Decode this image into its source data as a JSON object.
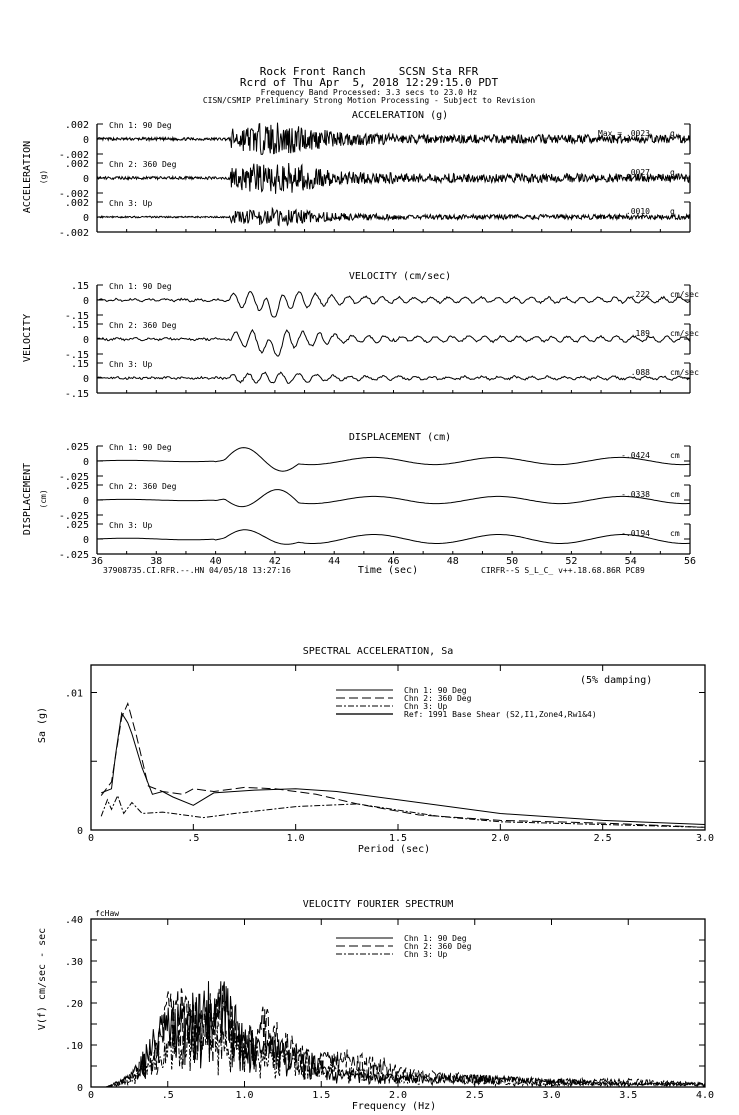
{
  "header": {
    "line1": "Rock Front Ranch     SCSN Sta RFR",
    "line2": "Rcrd of Thu Apr  5, 2018 12:29:15.0 PDT",
    "line3": "Frequency Band Processed: 3.3 secs to 23.0 Hz",
    "line4": "CISN/CSMIP Preliminary Strong Motion Processing - Subject to Revision"
  },
  "chart_data": [
    {
      "type": "line",
      "title": "ACCELERATION (g)",
      "ylabel": "ACCELERATION",
      "yunit": "(g)",
      "ylim": [
        -0.002,
        0.002
      ],
      "yticks": [
        ".002",
        "0",
        "-.002"
      ],
      "xlim": [
        36,
        56
      ],
      "max_label": "Max =",
      "series": [
        {
          "name": "Chn 1: 90 Deg",
          "peak": ".0023",
          "unit": "g"
        },
        {
          "name": "Chn 2: 360 Deg",
          "peak": ".0027",
          "unit": "g"
        },
        {
          "name": "Chn 3: Up",
          "peak": ".0010",
          "unit": "g"
        }
      ]
    },
    {
      "type": "line",
      "title": "VELOCITY (cm/sec)",
      "ylabel": "VELOCITY",
      "ylim": [
        -0.15,
        0.15
      ],
      "yticks": [
        ".15",
        "0",
        "-.15"
      ],
      "xlim": [
        36,
        56
      ],
      "series": [
        {
          "name": "Chn 1: 90 Deg",
          "peak": ".222",
          "unit": "cm/sec"
        },
        {
          "name": "Chn 2: 360 Deg",
          "peak": ".189",
          "unit": "cm/sec"
        },
        {
          "name": "Chn 3: Up",
          "peak": ".088",
          "unit": "cm/sec"
        }
      ]
    },
    {
      "type": "line",
      "title": "DISPLACEMENT (cm)",
      "ylabel": "DISPLACEMENT",
      "yunit": "(cm)",
      "ylim": [
        -0.025,
        0.025
      ],
      "yticks": [
        ".025",
        "0",
        "-.025"
      ],
      "xlim": [
        36,
        56
      ],
      "xlabel": "Time (sec)",
      "xticks": [
        "36",
        "38",
        "40",
        "42",
        "44",
        "46",
        "48",
        "50",
        "52",
        "54",
        "56"
      ],
      "footer_left": "37908735.CI.RFR.--.HN 04/05/18 13:27:16",
      "footer_right": "CIRFR--S  S_L_C_  v++.18.68.86R PC89",
      "series": [
        {
          "name": "Chn 1: 90 Deg",
          "peak": "-.0424",
          "unit": "cm"
        },
        {
          "name": "Chn 2: 360 Deg",
          "peak": "-.0338",
          "unit": "cm"
        },
        {
          "name": "Chn 3: Up",
          "peak": "-.0194",
          "unit": "cm"
        }
      ]
    },
    {
      "type": "line",
      "title": "SPECTRAL ACCELERATION, Sa",
      "xlabel": "Period (sec)",
      "ylabel": "Sa  (g)",
      "annotation": "(5% damping)",
      "xlim": [
        0,
        3.0
      ],
      "ylim": [
        0,
        0.012
      ],
      "xticks": [
        "0",
        ".5",
        "1.0",
        "1.5",
        "2.0",
        "2.5",
        "3.0"
      ],
      "yticks": [
        "0",
        ".01"
      ],
      "legend_position": "top-right",
      "reference_label": "Ref: 1991 Base Shear (S2,I1,Zone4,Rw1&4)",
      "series": [
        {
          "name": "Chn 1: 90 Deg",
          "style": "solid",
          "x": [
            0.05,
            0.1,
            0.12,
            0.15,
            0.18,
            0.2,
            0.25,
            0.3,
            0.35,
            0.4,
            0.5,
            0.6,
            0.8,
            1.0,
            1.2,
            1.5,
            2.0,
            2.5,
            3.0
          ],
          "y": [
            0.0027,
            0.003,
            0.0055,
            0.0085,
            0.0078,
            0.007,
            0.0045,
            0.0026,
            0.0028,
            0.0024,
            0.0018,
            0.0027,
            0.0029,
            0.003,
            0.0028,
            0.0022,
            0.0012,
            0.0007,
            0.0004
          ]
        },
        {
          "name": "Chn 2: 360 Deg",
          "style": "dashed",
          "x": [
            0.05,
            0.1,
            0.15,
            0.18,
            0.22,
            0.28,
            0.35,
            0.45,
            0.5,
            0.6,
            0.75,
            0.9,
            1.1,
            1.3,
            1.6,
            2.0,
            2.5,
            3.0
          ],
          "y": [
            0.0025,
            0.0035,
            0.0082,
            0.0092,
            0.007,
            0.0032,
            0.0028,
            0.0026,
            0.003,
            0.0028,
            0.0031,
            0.003,
            0.0026,
            0.0019,
            0.0011,
            0.0007,
            0.0005,
            0.0002
          ]
        },
        {
          "name": "Chn 3: Up",
          "style": "dash-dot",
          "x": [
            0.05,
            0.08,
            0.1,
            0.13,
            0.16,
            0.2,
            0.25,
            0.35,
            0.55,
            0.7,
            1.0,
            1.3,
            1.7,
            2.0,
            2.5,
            3.0
          ],
          "y": [
            0.001,
            0.0022,
            0.0015,
            0.0025,
            0.0012,
            0.002,
            0.0012,
            0.0013,
            0.0009,
            0.0012,
            0.0017,
            0.0019,
            0.001,
            0.0006,
            0.0004,
            0.0002
          ]
        }
      ]
    },
    {
      "type": "line",
      "title": "VELOCITY FOURIER SPECTRUM",
      "corner_label": "fcHaw",
      "xlabel": "Frequency (Hz)",
      "ylabel": "V(f)   cm/sec - sec",
      "xlim": [
        0,
        4.0
      ],
      "ylim": [
        0,
        0.4
      ],
      "xticks": [
        "0",
        ".5",
        "1.0",
        "1.5",
        "2.0",
        "2.5",
        "3.0",
        "3.5",
        "4.0"
      ],
      "yticks": [
        "0",
        ".10",
        ".20",
        ".30",
        ".40"
      ],
      "legend_position": "top-center",
      "series": [
        {
          "name": "Chn 1: 90 Deg",
          "style": "solid",
          "x": [
            0.1,
            0.2,
            0.3,
            0.45,
            0.55,
            0.7,
            0.85,
            1.0,
            1.2,
            1.4,
            1.6,
            2.0,
            2.5,
            3.0,
            3.5,
            4.0
          ],
          "y": [
            0,
            0.02,
            0.06,
            0.18,
            0.2,
            0.24,
            0.28,
            0.15,
            0.12,
            0.09,
            0.04,
            0.03,
            0.03,
            0.02,
            0.01,
            0.01
          ]
        },
        {
          "name": "Chn 2: 360 Deg",
          "style": "dashed",
          "x": [
            0.1,
            0.2,
            0.3,
            0.45,
            0.52,
            0.7,
            0.85,
            1.0,
            1.12,
            1.25,
            1.45,
            1.67,
            1.87,
            2.0,
            2.5,
            3.0,
            3.5,
            4.0
          ],
          "y": [
            0,
            0.02,
            0.05,
            0.15,
            0.26,
            0.2,
            0.25,
            0.13,
            0.2,
            0.14,
            0.08,
            0.09,
            0.08,
            0.05,
            0.03,
            0.02,
            0.02,
            0.01
          ]
        },
        {
          "name": "Chn 3: Up",
          "style": "dash-dot",
          "x": [
            0.1,
            0.2,
            0.3,
            0.45,
            0.6,
            0.8,
            1.0,
            1.2,
            1.5,
            2.0,
            2.5,
            3.0,
            4.0
          ],
          "y": [
            0,
            0.01,
            0.04,
            0.1,
            0.14,
            0.18,
            0.12,
            0.1,
            0.06,
            0.03,
            0.02,
            0.01,
            0.01
          ]
        }
      ]
    }
  ]
}
